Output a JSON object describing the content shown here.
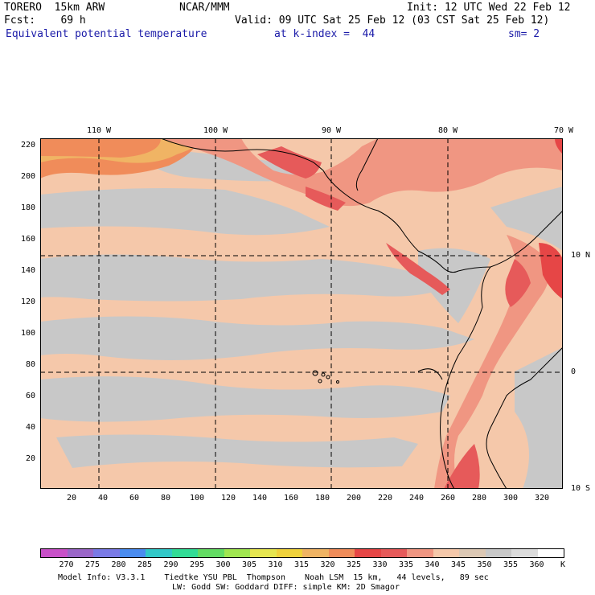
{
  "header": {
    "model": "TORERO  15km ARW",
    "center": "NCAR/MMM",
    "init": "Init: 12 UTC Wed 22 Feb 12",
    "fcst": "Fcst:    69 h",
    "valid": "Valid: 09 UTC Sat 25 Feb 12 (03 CST Sat 25 Feb 12)",
    "field": "Equivalent potential temperature",
    "level": "at k-index =  44",
    "smooth": "sm= 2"
  },
  "map": {
    "lon_labels": [
      "110 W",
      "100 W",
      "90 W",
      "80 W",
      "70 W"
    ],
    "lat_labels": [
      "10 N",
      "0",
      "10 S"
    ],
    "y_ticks": [
      "220",
      "200",
      "180",
      "160",
      "140",
      "120",
      "100",
      "80",
      "60",
      "40",
      "20"
    ],
    "x_ticks": [
      "20",
      "40",
      "60",
      "80",
      "100",
      "120",
      "140",
      "160",
      "180",
      "200",
      "220",
      "240",
      "260",
      "280",
      "300",
      "320"
    ]
  },
  "colorbar": {
    "colors": [
      "#c850c8",
      "#9a66c8",
      "#7a7ae6",
      "#4a8cf0",
      "#32c8c8",
      "#32dc96",
      "#64dc64",
      "#a0e650",
      "#e6e650",
      "#f0d23c",
      "#f0b464",
      "#f08c5a",
      "#e64646",
      "#e65a5a",
      "#f09682",
      "#f5c8aa",
      "#dcc8b4",
      "#c8c8c8",
      "#dcdcdc",
      "#ffffff"
    ],
    "labels": [
      "270",
      "275",
      "280",
      "285",
      "290",
      "295",
      "300",
      "305",
      "310",
      "315",
      "320",
      "325",
      "330",
      "335",
      "340",
      "345",
      "350",
      "355",
      "360",
      "K"
    ]
  },
  "footer": {
    "line1": "Model Info: V3.3.1    Tiedtke YSU PBL  Thompson    Noah LSM  15 km,   44 levels,   89 sec",
    "line2": "LW: Godd SW: Goddard DIFF: simple KM: 2D Smagor"
  }
}
